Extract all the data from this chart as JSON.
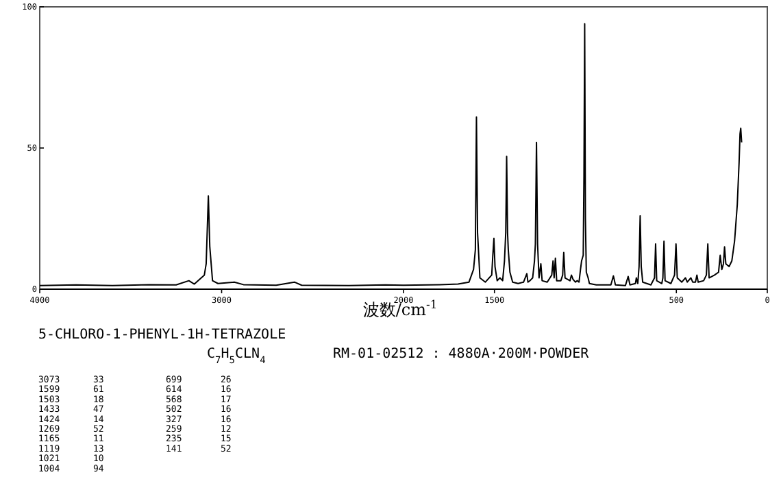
{
  "chart_data": {
    "type": "line",
    "title": "5-CHLORO-1-PHENYL-1H-TETRAZOLE",
    "subtitle": "C$_{7}$H$_{5}$CLN$_{4}$",
    "xlabel": "波数/cm$^{-1}$",
    "xlim": [
      4000,
      0
    ],
    "ylim": [
      0,
      100
    ],
    "xticks": [
      4000,
      3000,
      2000,
      1500,
      500,
      0
    ],
    "yticks": [
      0,
      50,
      100
    ],
    "series": [
      {
        "color": "#000000",
        "x": [
          4000,
          3800,
          3600,
          3400,
          3250,
          3180,
          3150,
          3095,
          3085,
          3073,
          3065,
          3050,
          3020,
          2930,
          2880,
          2700,
          2600,
          2560,
          2300,
          2100,
          2000,
          1800,
          1700,
          1640,
          1615,
          1605,
          1599,
          1593,
          1580,
          1550,
          1515,
          1509,
          1503,
          1497,
          1485,
          1470,
          1455,
          1445,
          1438,
          1433,
          1428,
          1424,
          1415,
          1400,
          1370,
          1340,
          1322,
          1316,
          1305,
          1290,
          1280,
          1275,
          1269,
          1263,
          1255,
          1245,
          1238,
          1210,
          1185,
          1178,
          1172,
          1165,
          1158,
          1135,
          1125,
          1119,
          1112,
          1085,
          1077,
          1068,
          1055,
          1045,
          1035,
          1027,
          1021,
          1012,
          1008,
          1004,
          1000,
          995,
          985,
          978,
          940,
          860,
          846,
          835,
          780,
          765,
          755,
          725,
          720,
          712,
          705,
          699,
          693,
          685,
          640,
          620,
          614,
          608,
          580,
          574,
          568,
          562,
          530,
          510,
          502,
          495,
          470,
          450,
          440,
          420,
          410,
          395,
          387,
          380,
          350,
          335,
          327,
          320,
          290,
          268,
          259,
          250,
          241,
          235,
          228,
          210,
          195,
          180,
          165,
          155,
          150,
          146,
          141
        ],
        "values": [
          1.3,
          1.5,
          1.3,
          1.6,
          1.5,
          3,
          1.8,
          5,
          9,
          33,
          15,
          3,
          2,
          2.5,
          1.6,
          1.4,
          2.5,
          1.4,
          1.3,
          1.5,
          1.4,
          1.6,
          1.8,
          2.5,
          7,
          14,
          61,
          20,
          4,
          2.5,
          5,
          12,
          18,
          8,
          3,
          4,
          3,
          10,
          20,
          47,
          20,
          14,
          6,
          2.5,
          2,
          2.5,
          5.5,
          2.5,
          3,
          4,
          10,
          16,
          52,
          16,
          4,
          9,
          3,
          2.5,
          5,
          10,
          4,
          11,
          3,
          3,
          5,
          13,
          4,
          3,
          5,
          3.5,
          2.5,
          3,
          2.5,
          7,
          10,
          12,
          40,
          94,
          25,
          6,
          4,
          2,
          1.5,
          1.5,
          4.7,
          1.5,
          1.3,
          4.5,
          1.5,
          2,
          4,
          2,
          8,
          26,
          8,
          2.5,
          1.5,
          4,
          16,
          3,
          2,
          4,
          17,
          3,
          2,
          5,
          16,
          4,
          2.5,
          4,
          2.5,
          4,
          2.5,
          2.5,
          5,
          2.5,
          3,
          5,
          16,
          4,
          5,
          6,
          12,
          7,
          9,
          15,
          9,
          8,
          10,
          17,
          30,
          45,
          55,
          57,
          52
        ]
      }
    ],
    "annotations": [
      "RM-01-02512 : 4880A·200M·POWDER",
      "3073",
      "33",
      "1599",
      "61",
      "1503",
      "18",
      "1433",
      "47",
      "1424",
      "14",
      "1269",
      "52",
      "1165",
      "11",
      "1119",
      "13",
      "1021",
      "10",
      "1004",
      "94",
      "699",
      "26",
      "614",
      "16",
      "568",
      "17",
      "502",
      "16",
      "327",
      "16",
      "259",
      "12",
      "235",
      "15",
      "141",
      "52"
    ]
  }
}
